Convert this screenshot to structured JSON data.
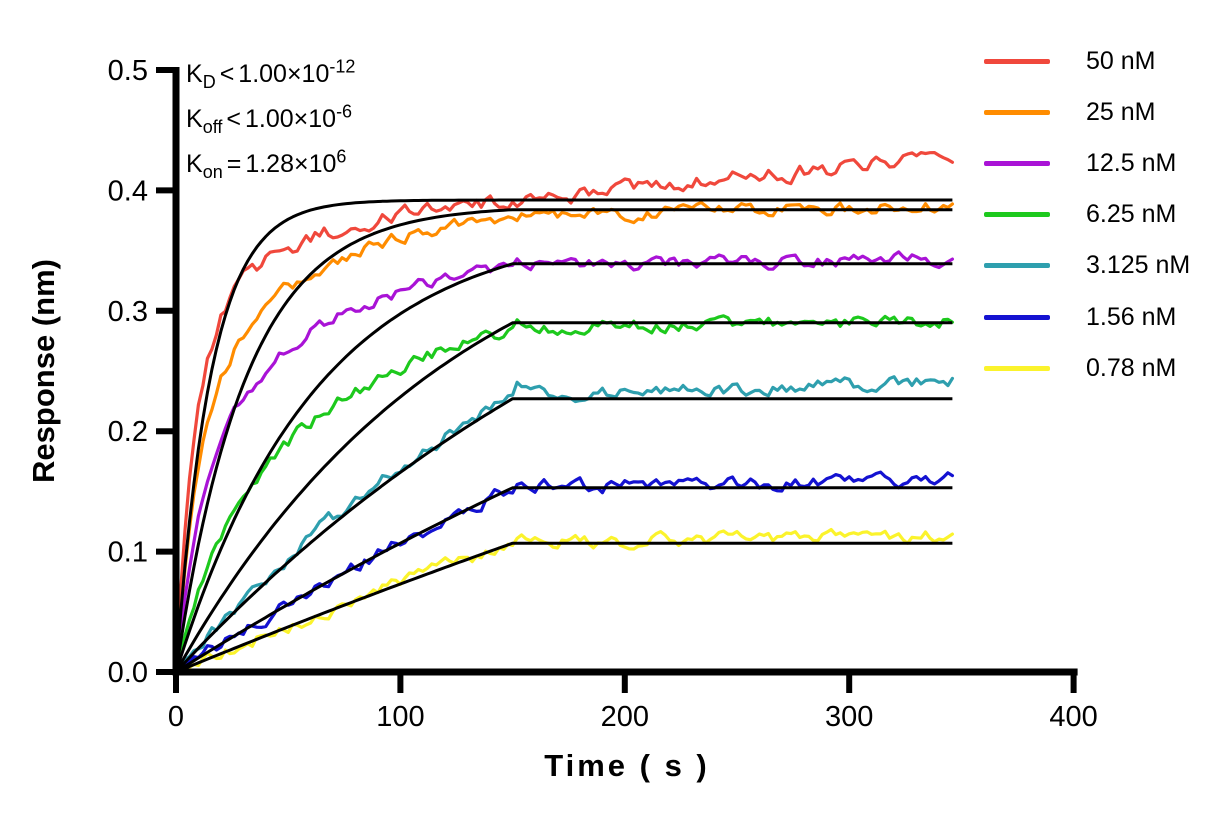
{
  "chart_data": {
    "type": "line",
    "title": "",
    "xlabel": "Time ( s )",
    "ylabel": "Response (nm)",
    "xlim": [
      0,
      400
    ],
    "ylim": [
      0,
      0.5
    ],
    "x_ticks": [
      {
        "value": 0,
        "label": "0"
      },
      {
        "value": 100,
        "label": "100"
      },
      {
        "value": 200,
        "label": "200"
      },
      {
        "value": 300,
        "label": "300"
      },
      {
        "value": 400,
        "label": "400"
      }
    ],
    "y_ticks": [
      {
        "value": 0.0,
        "label": "0.0"
      },
      {
        "value": 0.1,
        "label": "0.1"
      },
      {
        "value": 0.2,
        "label": "0.2"
      },
      {
        "value": 0.3,
        "label": "0.3"
      },
      {
        "value": 0.4,
        "label": "0.4"
      },
      {
        "value": 0.5,
        "label": "0.5"
      }
    ],
    "grid": false,
    "legend_position": "right",
    "axis_color": "#000000",
    "fit_color": "#000000",
    "association_end_s": 150,
    "curve_end_s": 346,
    "annotation_lines": [
      {
        "base": "K",
        "sub": "D",
        "op": "<",
        "coef": "1.00×10",
        "exp": "-12"
      },
      {
        "base": "K",
        "sub": "off",
        "op": "<",
        "coef": "1.00×10",
        "exp": "-6"
      },
      {
        "base": "K",
        "sub": "on",
        "op": "=",
        "coef": "1.28×10",
        "exp": "6"
      }
    ],
    "series": [
      {
        "label": "50 nM",
        "color": "#F0483C",
        "fit": {
          "kobs": 0.064,
          "plateau": 0.392
        },
        "data": {
          "a1": 0.28,
          "tau1": 8,
          "a2": 0.12,
          "tau2": 55,
          "plateau": 0.392,
          "drift": 0.036,
          "jump": 0.0,
          "noise": 0.0056
        }
      },
      {
        "label": "25 nM",
        "color": "#FF8C00",
        "fit": {
          "kobs": 0.032,
          "plateau": 0.384
        },
        "data": {
          "a1": 0.22,
          "tau1": 10,
          "a2": 0.165,
          "tau2": 60,
          "plateau": 0.379,
          "drift": 0.008,
          "jump": 0.0,
          "noise": 0.0044
        }
      },
      {
        "label": "12.5 nM",
        "color": "#A913D6",
        "fit": {
          "kobs": 0.016,
          "plateau": 0.339
        },
        "data": {
          "a1": 0.17,
          "tau1": 12,
          "a2": 0.172,
          "tau2": 70,
          "plateau": 0.338,
          "drift": 0.005,
          "jump": 0.004,
          "noise": 0.0046
        }
      },
      {
        "label": "6.25 nM",
        "color": "#1DC91D",
        "fit": {
          "kobs": 0.008,
          "plateau": 0.29
        },
        "data": {
          "a1": 0.08,
          "tau1": 15,
          "a2": 0.24,
          "tau2": 80,
          "plateau": 0.285,
          "drift": 0.007,
          "jump": 0.004,
          "noise": 0.0046
        }
      },
      {
        "label": "3.125 nM",
        "color": "#2E9FAE",
        "fit": {
          "kobs": 0.004,
          "plateau": 0.227
        },
        "data": {
          "a1": 0.0,
          "tau1": 1,
          "a2": 0.432,
          "tau2": 200,
          "plateau": 0.228,
          "drift": 0.013,
          "jump": 0.012,
          "noise": 0.0046
        }
      },
      {
        "label": "1.56 nM",
        "color": "#1412D1",
        "fit": {
          "kobs": 0.002,
          "plateau": 0.153
        },
        "data": {
          "a1": 0.0,
          "tau1": 1,
          "a2": 0.545,
          "tau2": 455,
          "plateau": 0.153,
          "drift": 0.007,
          "jump": 0.012,
          "noise": 0.0046
        }
      },
      {
        "label": "0.78 nM",
        "color": "#FBF32C",
        "fit": {
          "kobs": 0.001,
          "plateau": 0.107
        },
        "data": {
          "a1": 0.0,
          "tau1": 1,
          "a2": 0.484,
          "tau2": 600,
          "plateau": 0.107,
          "drift": 0.007,
          "jump": 0.006,
          "noise": 0.0046
        }
      }
    ]
  }
}
